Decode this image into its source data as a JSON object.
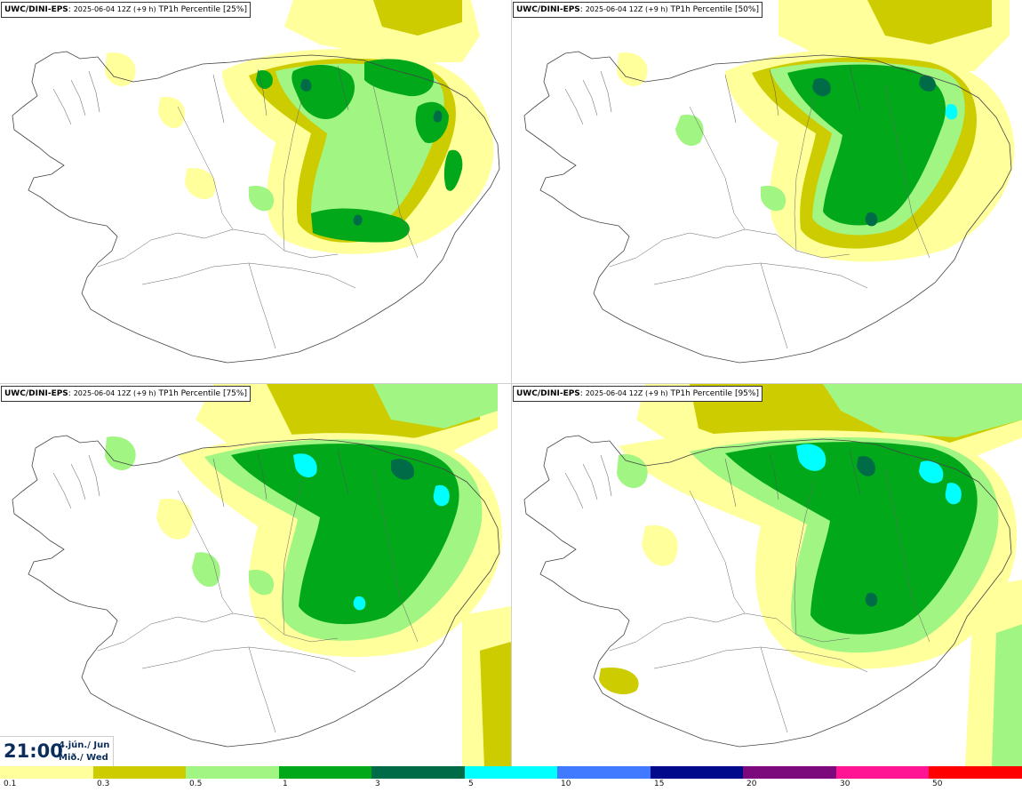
{
  "panels": [
    {
      "model": "UWC/DINI-EPS",
      "run": "2025-06-04 12Z (+9 h)",
      "field": "TP1h Percentile [25%]",
      "percentile": 25
    },
    {
      "model": "UWC/DINI-EPS",
      "run": "2025-06-04 12Z (+9 h)",
      "field": "TP1h Percentile [50%]",
      "percentile": 50
    },
    {
      "model": "UWC/DINI-EPS",
      "run": "2025-06-04 12Z (+9 h)",
      "field": "TP1h Percentile [75%]",
      "percentile": 75
    },
    {
      "model": "UWC/DINI-EPS",
      "run": "2025-06-04 12Z (+9 h)",
      "field": "TP1h Percentile [95%]",
      "percentile": 95
    }
  ],
  "time": {
    "clock": "21:00",
    "date": "4.jún./ Jun",
    "weekday": "Mið./ Wed"
  },
  "legend": {
    "colors": [
      "#ffff9c",
      "#cccc00",
      "#a1f582",
      "#00a81a",
      "#006b47",
      "#00ffff",
      "#4179ff",
      "#000a8a",
      "#7d0a7d",
      "#ff1493",
      "#ff0000"
    ],
    "ticks": [
      "0.1",
      "0.3",
      "0.5",
      "1",
      "3",
      "5",
      "10",
      "15",
      "20",
      "30",
      "50"
    ]
  }
}
